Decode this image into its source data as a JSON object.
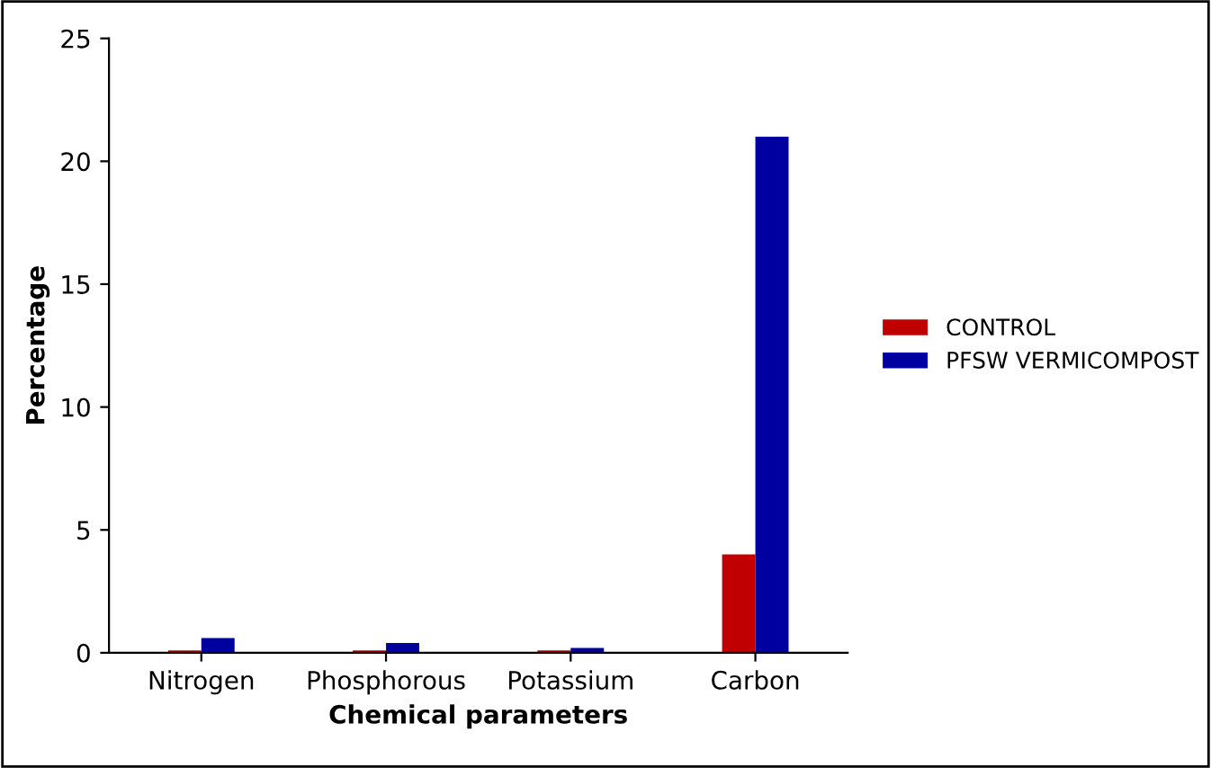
{
  "chart_data": {
    "type": "bar",
    "xlabel": "Chemical parameters",
    "ylabel": "Percentage",
    "categories": [
      "Nitrogen",
      "Phosphorous",
      "Potassium",
      "Carbon"
    ],
    "series": [
      {
        "name": "CONTROL",
        "color": "#c00000",
        "values": [
          0.1,
          0.1,
          0.1,
          4
        ]
      },
      {
        "name": "PFSW VERMICOMPOST",
        "color": "#0000a0",
        "values": [
          0.6,
          0.4,
          0.2,
          21
        ]
      }
    ],
    "ylim": [
      0,
      25
    ],
    "yticks": [
      0,
      5,
      10,
      15,
      20,
      25
    ],
    "legend": "right",
    "grid": false
  }
}
